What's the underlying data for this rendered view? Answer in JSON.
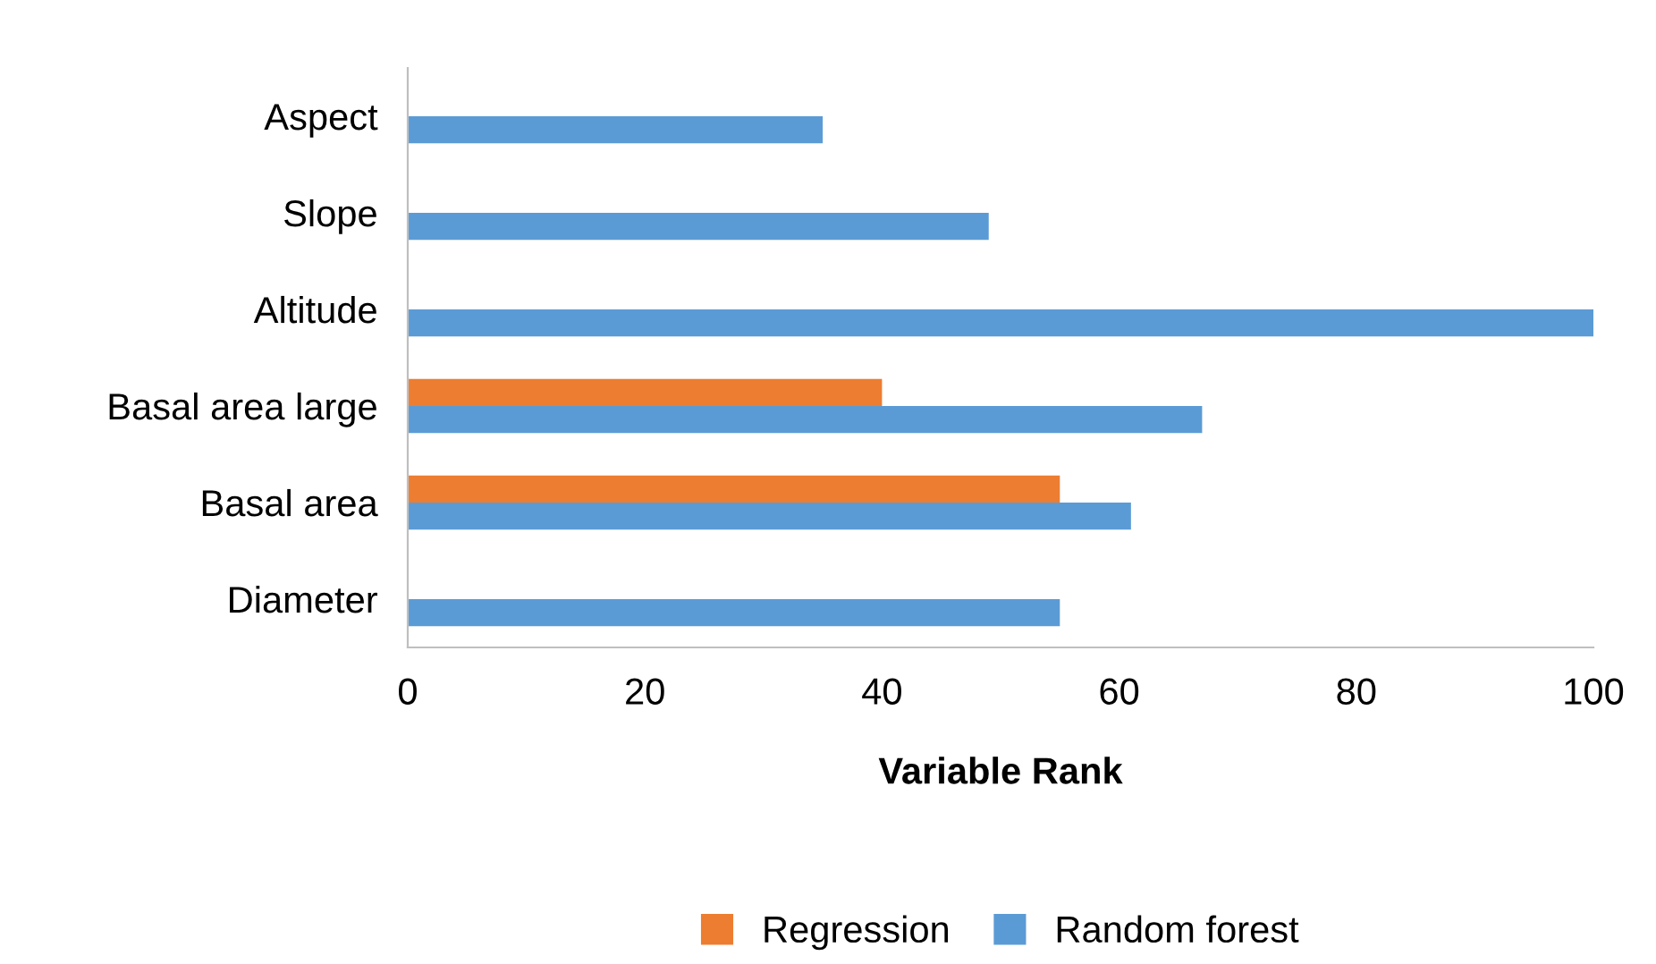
{
  "chart_data": {
    "type": "bar",
    "orientation": "horizontal",
    "xlabel": "Variable Rank",
    "categories": [
      "Aspect",
      "Slope",
      "Altitude",
      "Basal area large",
      "Basal area",
      "Diameter"
    ],
    "series": [
      {
        "name": "Regression",
        "color": "#ed7d31",
        "values": [
          null,
          null,
          null,
          40,
          55,
          null
        ]
      },
      {
        "name": "Random forest",
        "color": "#5b9bd5",
        "values": [
          35,
          49,
          100,
          67,
          61,
          55
        ]
      }
    ],
    "xlim": [
      0,
      100
    ],
    "xticks": [
      0,
      20,
      40,
      60,
      80,
      100
    ],
    "grid": false,
    "legend": "bottom"
  }
}
